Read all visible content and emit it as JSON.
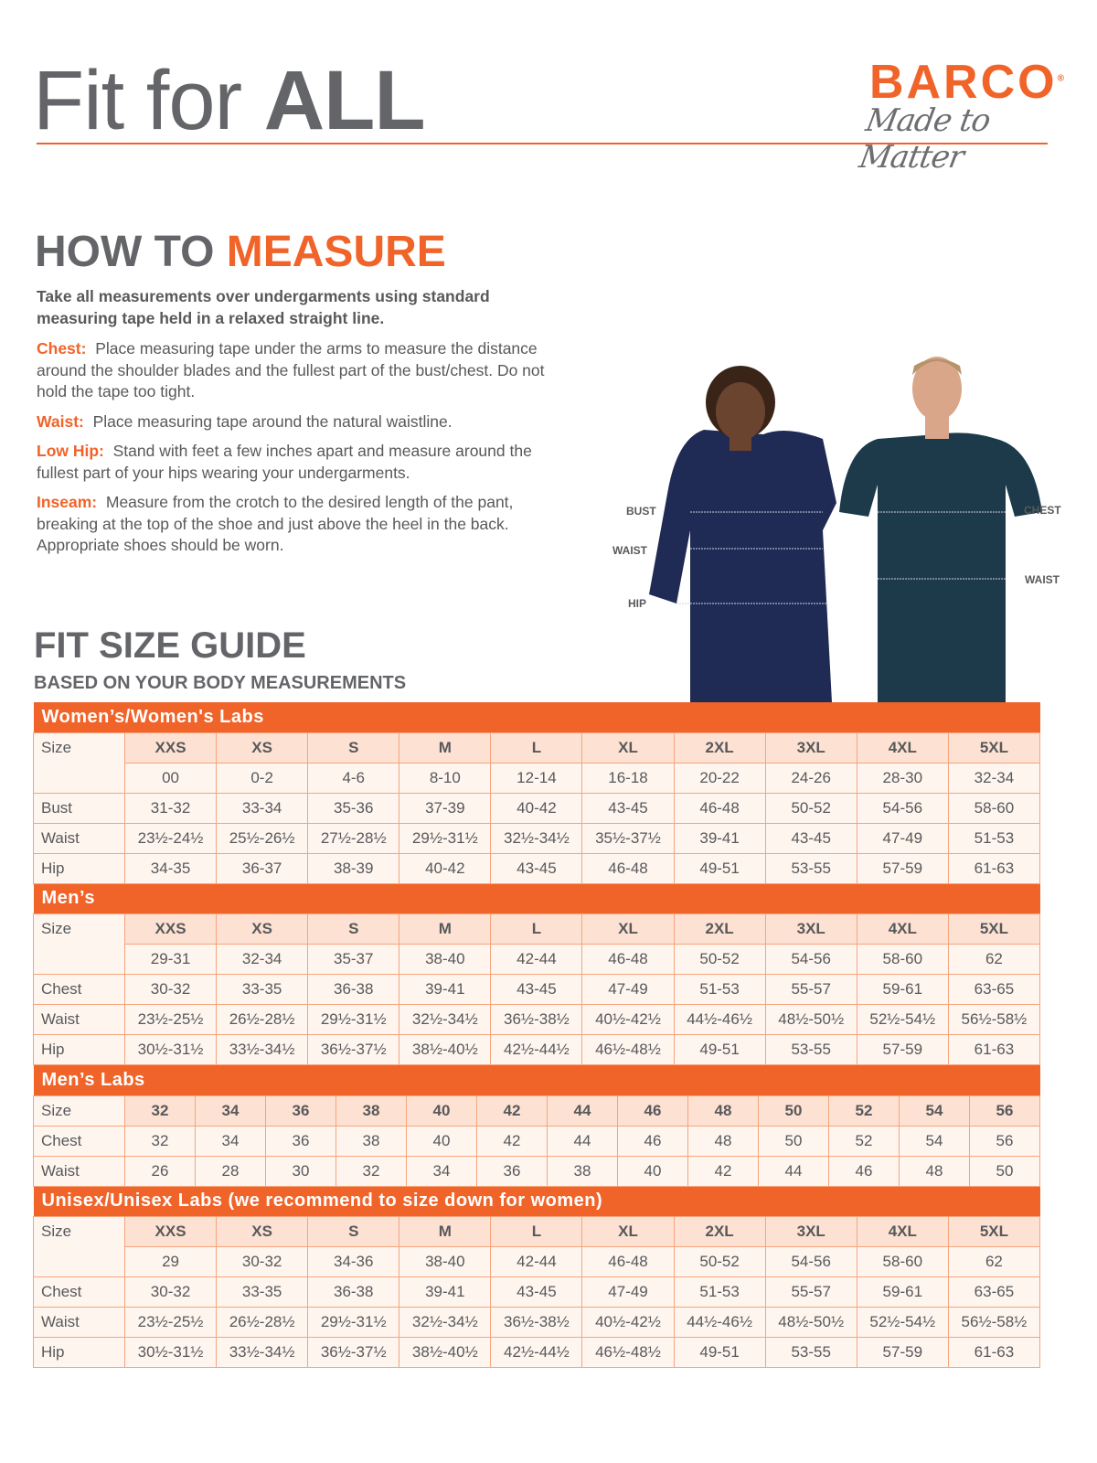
{
  "header": {
    "title_light": "Fit for ",
    "title_bold": "ALL",
    "logo_brand": "BARCO",
    "logo_tagline": "Made to Matter"
  },
  "how_to": {
    "title_gray": "HOW TO ",
    "title_orange": "MEASURE",
    "intro": "Take all measurements over undergarments using standard measuring tape held in a relaxed straight line.",
    "items": [
      {
        "label": "Chest:",
        "text": "Place measuring tape under the arms to measure the distance around the shoulder blades and the fullest part of the bust/chest. Do not hold the tape too tight."
      },
      {
        "label": "Waist:",
        "text": "Place measuring tape around the natural waistline."
      },
      {
        "label": "Low Hip:",
        "text": "Stand with feet a few inches apart and measure around the fullest part of your hips wearing your undergarments."
      },
      {
        "label": "Inseam:",
        "text": "Measure from the crotch to the desired length of the pant, breaking at the top of the shoe and just above the heel in the back. Appropriate shoes should be worn."
      }
    ]
  },
  "photo_labels": {
    "bust": "BUST",
    "waist_w": "WAIST",
    "hip": "HIP",
    "chest": "CHEST",
    "waist_m": "WAIST"
  },
  "guide": {
    "title": "FIT SIZE GUIDE",
    "subtitle": "BASED ON YOUR BODY MEASUREMENTS"
  },
  "colors": {
    "accent": "#f0642a",
    "size_row": "#fde2d3",
    "cell": "#fef5ef",
    "text": "#58595b"
  },
  "tables": [
    {
      "title": "Women’s/Women's Labs",
      "size_label": "Size",
      "sizes": [
        "XXS",
        "XS",
        "S",
        "M",
        "L",
        "XL",
        "2XL",
        "3XL",
        "4XL",
        "5XL"
      ],
      "alt_sizes": [
        "00",
        "0-2",
        "4-6",
        "8-10",
        "12-14",
        "16-18",
        "20-22",
        "24-26",
        "28-30",
        "32-34"
      ],
      "rows": [
        {
          "label": "Bust",
          "values": [
            "31-32",
            "33-34",
            "35-36",
            "37-39",
            "40-42",
            "43-45",
            "46-48",
            "50-52",
            "54-56",
            "58-60"
          ]
        },
        {
          "label": "Waist",
          "values": [
            "23½-24½",
            "25½-26½",
            "27½-28½",
            "29½-31½",
            "32½-34½",
            "35½-37½",
            "39-41",
            "43-45",
            "47-49",
            "51-53"
          ]
        },
        {
          "label": "Hip",
          "values": [
            "34-35",
            "36-37",
            "38-39",
            "40-42",
            "43-45",
            "46-48",
            "49-51",
            "53-55",
            "57-59",
            "61-63"
          ]
        }
      ]
    },
    {
      "title": "Men’s",
      "size_label": "Size",
      "sizes": [
        "XXS",
        "XS",
        "S",
        "M",
        "L",
        "XL",
        "2XL",
        "3XL",
        "4XL",
        "5XL"
      ],
      "alt_sizes": [
        "29-31",
        "32-34",
        "35-37",
        "38-40",
        "42-44",
        "46-48",
        "50-52",
        "54-56",
        "58-60",
        "62"
      ],
      "rows": [
        {
          "label": "Chest",
          "values": [
            "30-32",
            "33-35",
            "36-38",
            "39-41",
            "43-45",
            "47-49",
            "51-53",
            "55-57",
            "59-61",
            "63-65"
          ]
        },
        {
          "label": "Waist",
          "values": [
            "23½-25½",
            "26½-28½",
            "29½-31½",
            "32½-34½",
            "36½-38½",
            "40½-42½",
            "44½-46½",
            "48½-50½",
            "52½-54½",
            "56½-58½"
          ]
        },
        {
          "label": "Hip",
          "values": [
            "30½-31½",
            "33½-34½",
            "36½-37½",
            "38½-40½",
            "42½-44½",
            "46½-48½",
            "49-51",
            "53-55",
            "57-59",
            "61-63"
          ]
        }
      ]
    },
    {
      "title": "Men’s Labs",
      "size_label": "Size",
      "sizes": [
        "32",
        "34",
        "36",
        "38",
        "40",
        "42",
        "44",
        "46",
        "48",
        "50",
        "52",
        "54",
        "56"
      ],
      "rows": [
        {
          "label": "Chest",
          "values": [
            "32",
            "34",
            "36",
            "38",
            "40",
            "42",
            "44",
            "46",
            "48",
            "50",
            "52",
            "54",
            "56"
          ]
        },
        {
          "label": "Waist",
          "values": [
            "26",
            "28",
            "30",
            "32",
            "34",
            "36",
            "38",
            "40",
            "42",
            "44",
            "46",
            "48",
            "50"
          ]
        }
      ]
    },
    {
      "title": "Unisex/Unisex Labs (we recommend to size down for women)",
      "size_label": "Size",
      "sizes": [
        "XXS",
        "XS",
        "S",
        "M",
        "L",
        "XL",
        "2XL",
        "3XL",
        "4XL",
        "5XL"
      ],
      "alt_sizes": [
        "29",
        "30-32",
        "34-36",
        "38-40",
        "42-44",
        "46-48",
        "50-52",
        "54-56",
        "58-60",
        "62"
      ],
      "rows": [
        {
          "label": "Chest",
          "values": [
            "30-32",
            "33-35",
            "36-38",
            "39-41",
            "43-45",
            "47-49",
            "51-53",
            "55-57",
            "59-61",
            "63-65"
          ]
        },
        {
          "label": "Waist",
          "values": [
            "23½-25½",
            "26½-28½",
            "29½-31½",
            "32½-34½",
            "36½-38½",
            "40½-42½",
            "44½-46½",
            "48½-50½",
            "52½-54½",
            "56½-58½"
          ]
        },
        {
          "label": "Hip",
          "values": [
            "30½-31½",
            "33½-34½",
            "36½-37½",
            "38½-40½",
            "42½-44½",
            "46½-48½",
            "49-51",
            "53-55",
            "57-59",
            "61-63"
          ]
        }
      ]
    }
  ]
}
